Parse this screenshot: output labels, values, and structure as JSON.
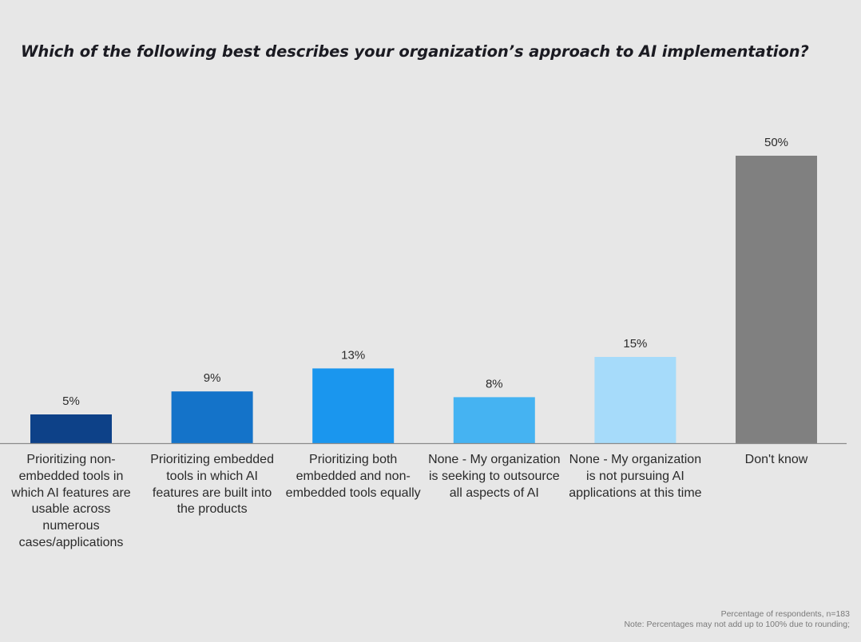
{
  "chart_data": {
    "type": "bar",
    "title": "Which of the following best describes your organization’s approach to AI implementation?",
    "xlabel": "",
    "ylabel": "",
    "ylim": [
      0,
      50
    ],
    "grid": false,
    "legend": "none",
    "categories": [
      "Prioritizing non-embedded tools in which AI features are usable across numerous cases/applications",
      "Prioritizing embedded tools in which AI features are built into the products",
      "Prioritizing both embedded and non-embedded tools equally",
      "None - My organization is seeking to outsource all aspects of AI",
      "None - My organization is not pursuing AI applications at this time",
      "Don't know"
    ],
    "values": [
      5,
      9,
      13,
      8,
      15,
      50
    ],
    "data_labels": [
      "5%",
      "9%",
      "13%",
      "8%",
      "15%",
      "50%"
    ],
    "colors": [
      "#0d4188",
      "#1473c9",
      "#1a96ee",
      "#45b3f2",
      "#a6dbfa",
      "#808080"
    ],
    "value_suffix": "%"
  },
  "footer": {
    "line1": "Percentage of respondents, n=183",
    "line2": "Note: Percentages may not add up to 100% due to rounding;"
  }
}
